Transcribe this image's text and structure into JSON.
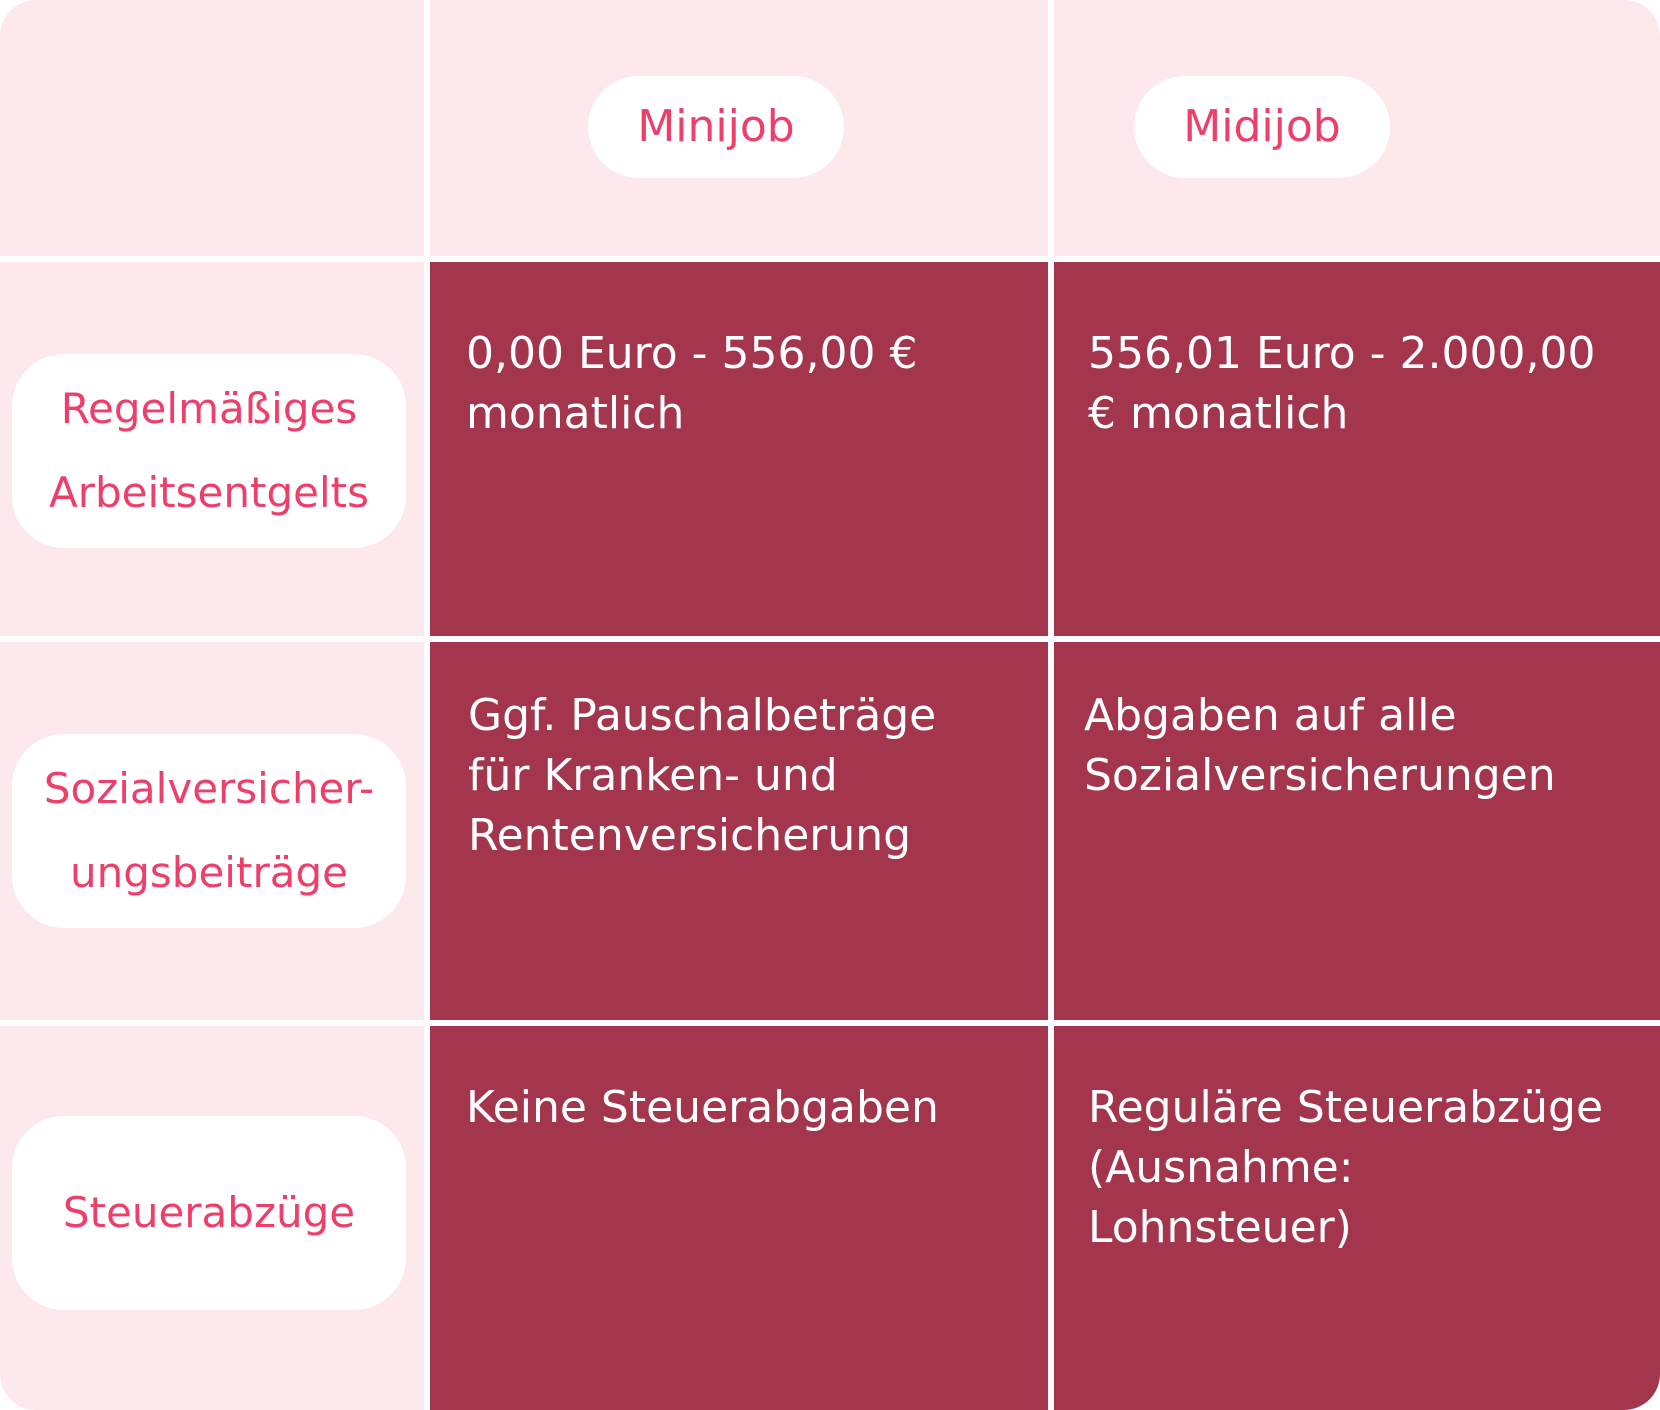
{
  "columns": [
    "Minijob",
    "Midijob"
  ],
  "rows": [
    {
      "label": "Regelmäßiges\nArbeitsentgelts",
      "minijob": "0,00 Euro - 556,00 €\nmonatlich",
      "midijob": "556,01 Euro - 2.000,00\n€ monatlich"
    },
    {
      "label": "Sozialversicher-\nungsbeiträge",
      "minijob": "Ggf. Pauschalbeträge\nfür Kranken- und\nRentenversicherung",
      "midijob": "Abgaben auf alle\nSozialversicherungen"
    },
    {
      "label": "Steuerabzüge",
      "minijob": "Keine Steuerabgaben",
      "midijob": "Reguläre Steuerabzüge\n(Ausnahme:\nLohnsteuer)"
    }
  ],
  "colors": {
    "header_bg": "#fde8ec",
    "cell_bg": "#a3354d",
    "accent_text": "#ee3e6a",
    "pill_bg": "#ffffff"
  }
}
